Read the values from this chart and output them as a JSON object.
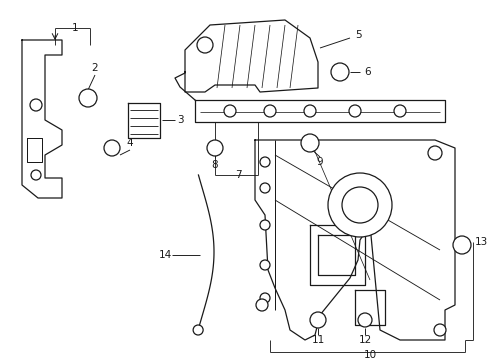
{
  "background_color": "#ffffff",
  "line_color": "#1a1a1a",
  "figsize": [
    4.89,
    3.6
  ],
  "dpi": 100,
  "lw": 0.9,
  "label_fontsize": 7.5
}
